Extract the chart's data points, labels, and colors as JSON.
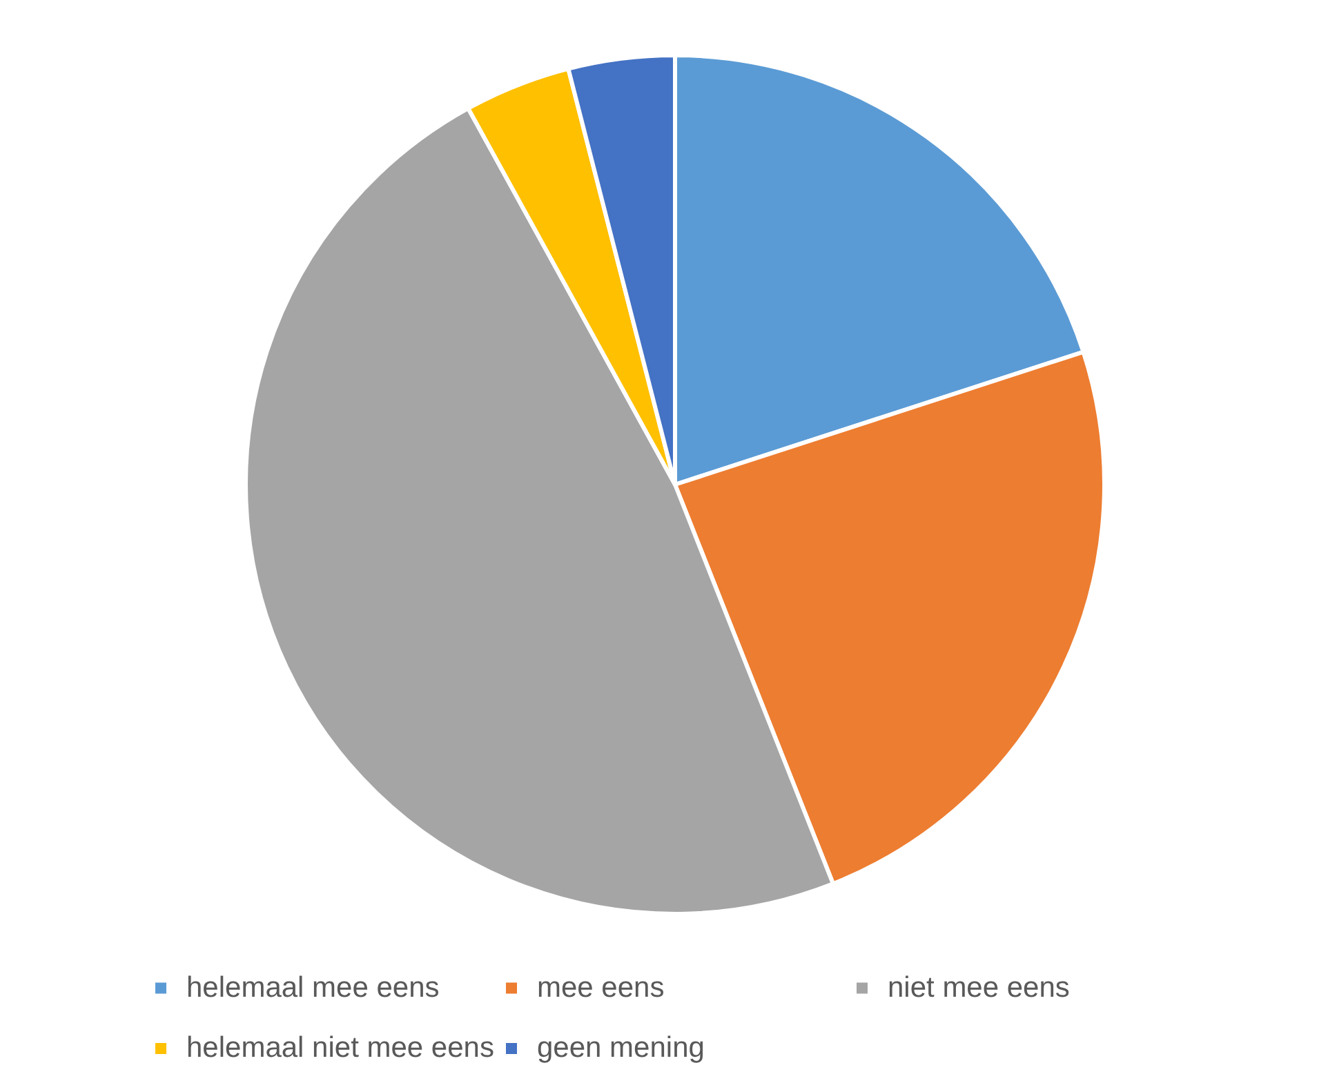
{
  "chart_data": {
    "type": "pie",
    "categories": [
      "helemaal mee eens",
      "mee eens",
      "niet mee eens",
      "helemaal niet mee eens",
      "geen mening"
    ],
    "values": [
      20,
      24,
      48,
      4,
      4
    ],
    "colors": [
      "#5b9bd5",
      "#ed7d31",
      "#a5a5a5",
      "#ffc000",
      "#4472c4"
    ],
    "legend": "bottom"
  }
}
